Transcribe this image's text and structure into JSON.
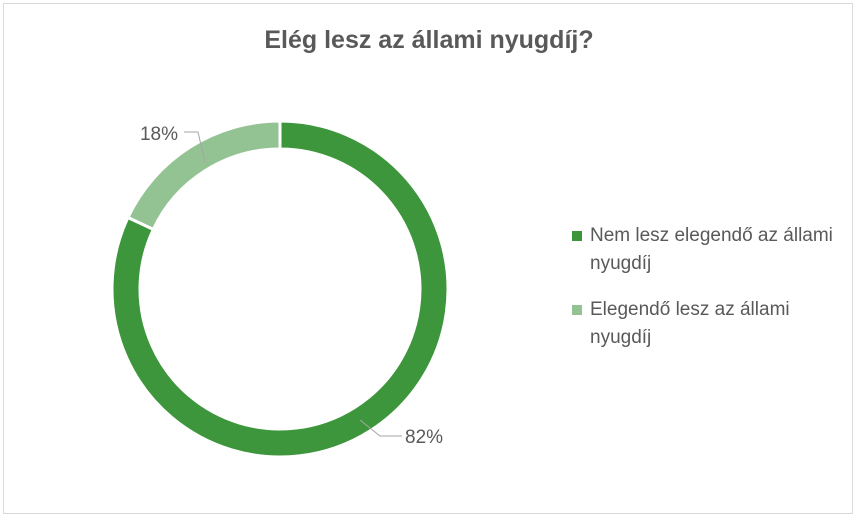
{
  "chart_data": {
    "type": "pie",
    "title": "Elég lesz az állami nyugdíj?",
    "donut": true,
    "legend_position": "right",
    "slices": [
      {
        "label": "Nem lesz elegendő az állami nyugdíj",
        "value": 82,
        "value_label": "82%",
        "color": "#3d963b"
      },
      {
        "label": "Elegendő lesz az állami nyugdíj",
        "value": 18,
        "value_label": "18%",
        "color": "#93c393"
      }
    ]
  }
}
